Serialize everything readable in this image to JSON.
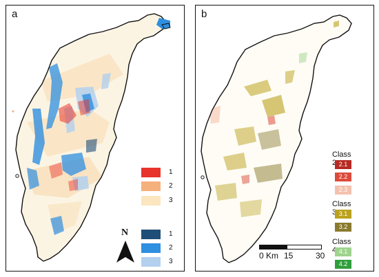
{
  "panel_a": {
    "label": "a",
    "legend_top": [
      {
        "num": "1",
        "color": "#e8342a"
      },
      {
        "num": "2",
        "color": "#f5b07e"
      },
      {
        "num": "3",
        "color": "#fbe6bf"
      }
    ],
    "legend_bottom": [
      {
        "num": "1",
        "color": "#1f4e79"
      },
      {
        "num": "2",
        "color": "#2f8fe0"
      },
      {
        "num": "3",
        "color": "#b3d0ee"
      }
    ],
    "north_label": "N"
  },
  "panel_b": {
    "label": "b",
    "classes": [
      {
        "title": "Class 2",
        "items": [
          {
            "code": "2.1",
            "color": "#b52a23"
          },
          {
            "code": "2.2",
            "color": "#dc4a3a"
          },
          {
            "code": "2.3",
            "color": "#f3c1ad"
          }
        ]
      },
      {
        "title": "Class 3",
        "items": [
          {
            "code": "3.1",
            "color": "#bba21e"
          },
          {
            "code": "3.2",
            "color": "#8a7a2e"
          }
        ]
      },
      {
        "title": "Class 4",
        "items": [
          {
            "code": "4.1",
            "color": "#9fd38e"
          },
          {
            "code": "4.2",
            "color": "#2f9e3c"
          }
        ]
      }
    ],
    "scale": {
      "start": "0",
      "unit": "Km",
      "mid": "15",
      "end": "30"
    }
  }
}
